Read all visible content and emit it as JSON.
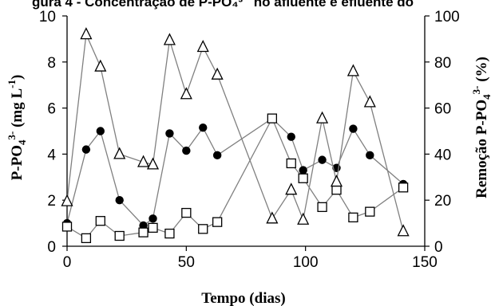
{
  "chart_data": {
    "type": "line",
    "title": "gura 4 - Concentração de P-PO₄³⁻ no afluente e efluente do",
    "xlabel": "Tempo (dias)",
    "ylabel_left_prefix": "P-PO",
    "ylabel_left_sub": "4",
    "ylabel_left_sup": "3-",
    "ylabel_left_unit": " (mg L",
    "ylabel_left_unit_sup": "-1",
    "ylabel_left_close": ")",
    "ylabel_right_prefix": "Remoção P-PO",
    "ylabel_right_sub": "4",
    "ylabel_right_sup": "3-",
    "ylabel_right_unit": " (%)",
    "xlim": [
      0,
      150
    ],
    "ylim_left": [
      0,
      10
    ],
    "ylim_right": [
      0,
      100
    ],
    "x_ticks": [
      "0",
      "50",
      "100",
      "150"
    ],
    "y_left_ticks": [
      "0",
      "2",
      "4",
      "6",
      "8",
      "10"
    ],
    "y_right_ticks": [
      "0",
      "20",
      "40",
      "60",
      "80",
      "100"
    ],
    "grid": false,
    "series": [
      {
        "marker": "filled-circle",
        "axis": "left",
        "points": [
          [
            0,
            1.0
          ],
          [
            8,
            4.2
          ],
          [
            14,
            5.0
          ],
          [
            22,
            2.0
          ],
          [
            32,
            0.9
          ],
          [
            36,
            1.2
          ],
          [
            43,
            4.9
          ],
          [
            50,
            4.15
          ],
          [
            57,
            5.15
          ],
          [
            63,
            3.95
          ],
          [
            86,
            5.55
          ],
          [
            94,
            4.75
          ],
          [
            99,
            3.3
          ],
          [
            107,
            3.75
          ],
          [
            113,
            3.4
          ],
          [
            120,
            5.1
          ],
          [
            127,
            3.95
          ],
          [
            141,
            2.7
          ]
        ]
      },
      {
        "marker": "open-square",
        "axis": "left",
        "points": [
          [
            0,
            0.85
          ],
          [
            8,
            0.35
          ],
          [
            14,
            1.1
          ],
          [
            22,
            0.45
          ],
          [
            32,
            0.6
          ],
          [
            36,
            0.8
          ],
          [
            43,
            0.55
          ],
          [
            50,
            1.45
          ],
          [
            57,
            0.75
          ],
          [
            63,
            1.05
          ],
          [
            86,
            5.55
          ],
          [
            94,
            3.6
          ],
          [
            99,
            2.95
          ],
          [
            107,
            1.7
          ],
          [
            113,
            2.45
          ],
          [
            120,
            1.25
          ],
          [
            127,
            1.5
          ],
          [
            141,
            2.55
          ]
        ]
      },
      {
        "marker": "open-triangle",
        "axis": "right",
        "points": [
          [
            0,
            19.5
          ],
          [
            8,
            92
          ],
          [
            14,
            78
          ],
          [
            22,
            40
          ],
          [
            32,
            36.5
          ],
          [
            36,
            35.5
          ],
          [
            43,
            89.5
          ],
          [
            50,
            66
          ],
          [
            57,
            86.5
          ],
          [
            63,
            74.5
          ],
          [
            86,
            12
          ],
          [
            94,
            24.5
          ],
          [
            99,
            11.5
          ],
          [
            107,
            55.5
          ],
          [
            113,
            28
          ],
          [
            120,
            76
          ],
          [
            127,
            62.5
          ],
          [
            141,
            6.5
          ]
        ]
      }
    ],
    "colors": {
      "line": "#808080",
      "marker": "#000000",
      "background": "#ffffff"
    }
  }
}
